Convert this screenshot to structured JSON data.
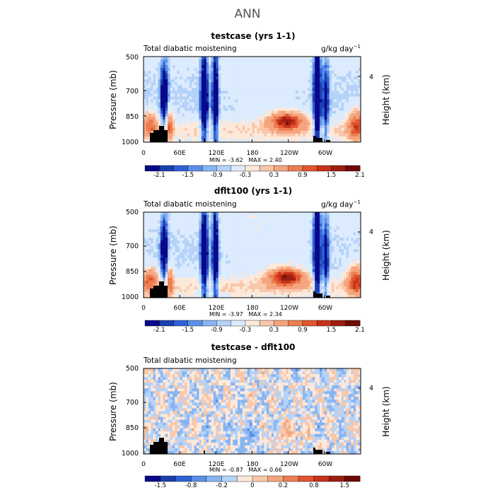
{
  "figure": {
    "title": "ANN",
    "variable": "Total diabatic moistening",
    "units": "g/kg day",
    "units_exp": "−1",
    "ylabel_left": "Pressure (mb)",
    "ylabel_right": "Height (km)",
    "stat_min_label": "MIN =",
    "stat_max_label": "MAX ="
  },
  "colors": {
    "land": "#000000",
    "frame": "#000000"
  },
  "chart_data": [
    {
      "type": "heatmap",
      "title": "testcase (yrs 1-1)",
      "xlabel": "",
      "ylabel": "Pressure (mb)",
      "x_ticks": [
        "0",
        "60E",
        "120E",
        "180",
        "120W",
        "60W"
      ],
      "y_ticks": [
        "500",
        "700",
        "850",
        "1000"
      ],
      "y2_ticks": [
        "4"
      ],
      "xlim": [
        0,
        360
      ],
      "ylim": [
        1000,
        500
      ],
      "min": "-3.62",
      "max": "2.40",
      "colorbar": {
        "labels": [
          "-2.1",
          "-1.5",
          "-0.9",
          "-0.3",
          "0.3",
          "0.9",
          "1.5",
          "2.1"
        ],
        "colors": [
          "#08088a",
          "#1a3fb0",
          "#2f62d8",
          "#5a8ee8",
          "#88b4f2",
          "#b5d2f8",
          "#dcebfd",
          "#fde9da",
          "#f9c7aa",
          "#f4a57e",
          "#ec7e52",
          "#e1552f",
          "#c6321a",
          "#9c1e10",
          "#6e0a05"
        ]
      }
    },
    {
      "type": "heatmap",
      "title": "dflt100 (yrs 1-1)",
      "xlabel": "",
      "ylabel": "Pressure (mb)",
      "x_ticks": [
        "0",
        "60E",
        "120E",
        "180",
        "120W",
        "60W"
      ],
      "y_ticks": [
        "500",
        "700",
        "850",
        "1000"
      ],
      "y2_ticks": [
        "4"
      ],
      "xlim": [
        0,
        360
      ],
      "ylim": [
        1000,
        500
      ],
      "min": "-3.97",
      "max": "2.34",
      "colorbar": {
        "labels": [
          "-2.1",
          "-1.5",
          "-0.9",
          "-0.3",
          "0.3",
          "0.9",
          "1.5",
          "2.1"
        ],
        "colors": [
          "#08088a",
          "#1a3fb0",
          "#2f62d8",
          "#5a8ee8",
          "#88b4f2",
          "#b5d2f8",
          "#dcebfd",
          "#fde9da",
          "#f9c7aa",
          "#f4a57e",
          "#ec7e52",
          "#e1552f",
          "#c6321a",
          "#9c1e10",
          "#6e0a05"
        ]
      }
    },
    {
      "type": "heatmap",
      "title": "testcase - dflt100",
      "xlabel": "",
      "ylabel": "Pressure (mb)",
      "x_ticks": [
        "0",
        "60E",
        "120E",
        "180",
        "120W",
        "60W"
      ],
      "y_ticks": [
        "500",
        "700",
        "850",
        "1000"
      ],
      "y2_ticks": [
        "4"
      ],
      "xlim": [
        0,
        360
      ],
      "ylim": [
        1000,
        500
      ],
      "min": "-0.87",
      "max": "0.66",
      "colorbar": {
        "labels": [
          "-1.5",
          "-0.8",
          "-0.2",
          "0",
          "0.2",
          "0.8",
          "1.5"
        ],
        "colors": [
          "#08088a",
          "#1a3fb0",
          "#2f62d8",
          "#5a8ee8",
          "#88b4f2",
          "#b5d2f8",
          "#fde9da",
          "#f9c7aa",
          "#f4a57e",
          "#ec7e52",
          "#e1552f",
          "#c6321a",
          "#9c1e10",
          "#6e0a05"
        ]
      }
    }
  ]
}
